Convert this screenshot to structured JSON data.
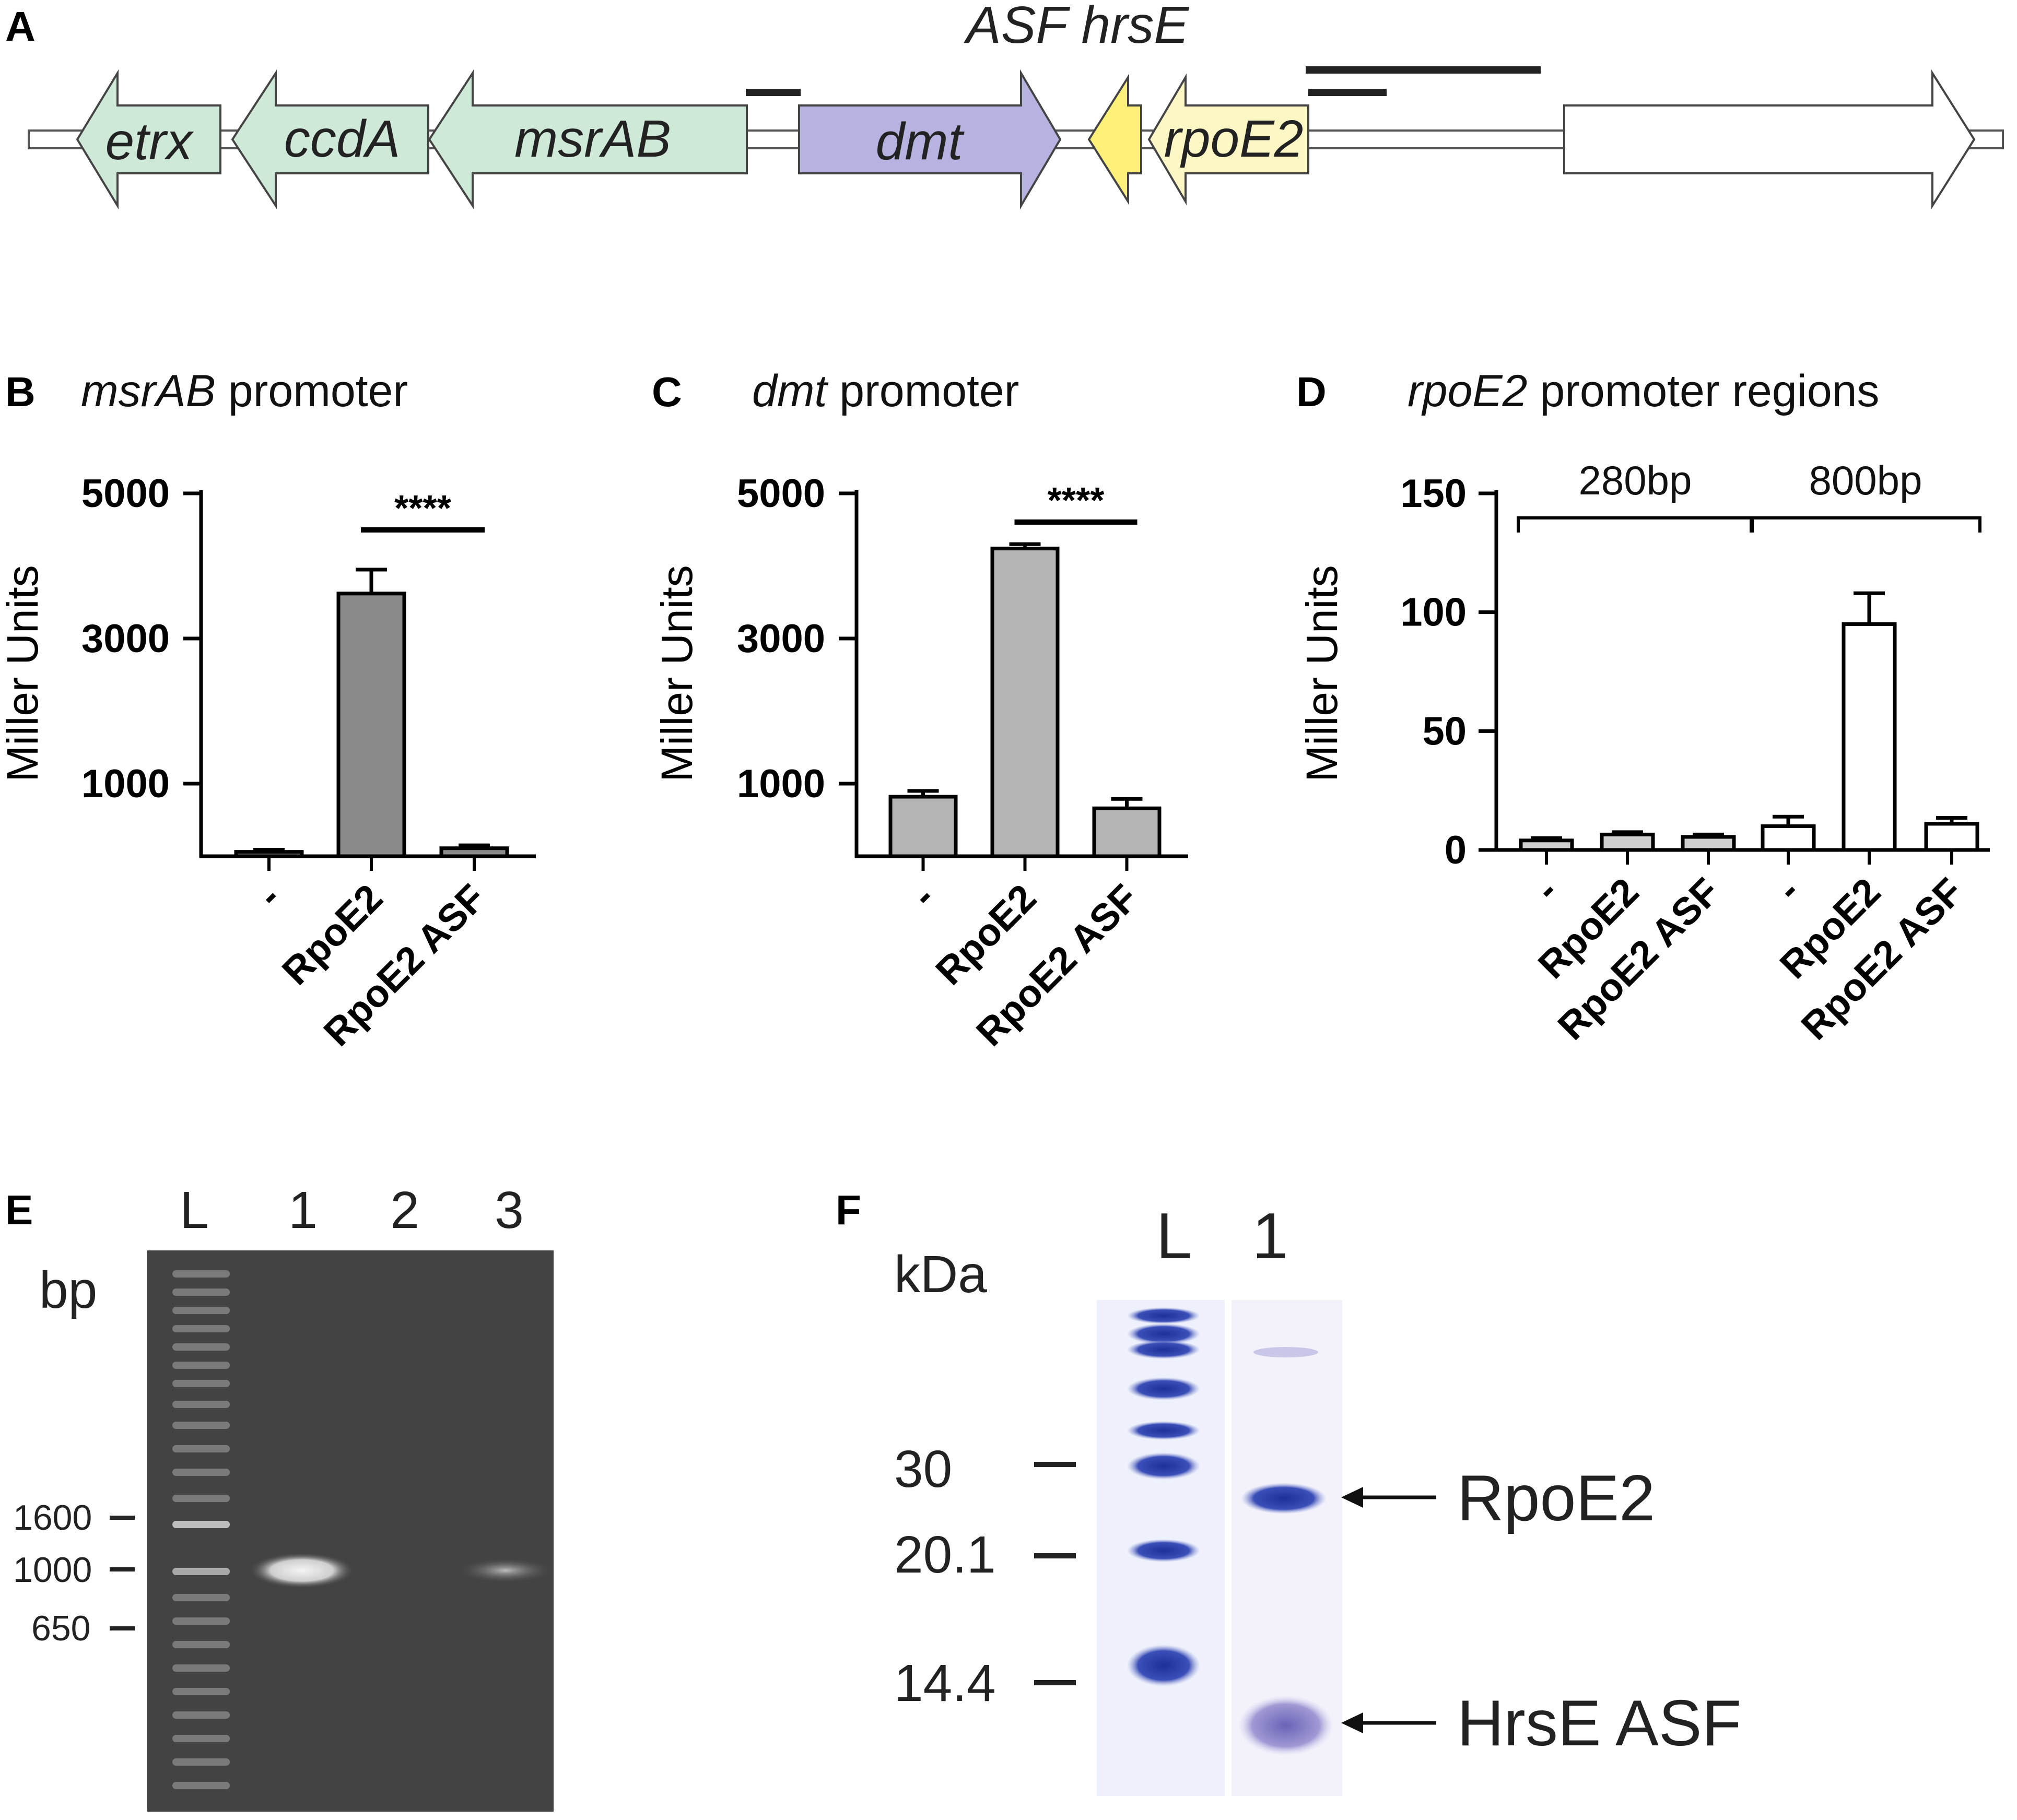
{
  "panels": {
    "a": {
      "label": "A",
      "title": "ASF hrsE",
      "genes": {
        "etrx": "etrx",
        "ccda": "ccdA",
        "msrab": "msrAB",
        "dmt": "dmt",
        "rpoe2": "rpoE2"
      },
      "colors": {
        "green": "#cfe9d8",
        "purple": "#b7b3e0",
        "yellow": "#fff07a",
        "pale_yellow": "#fdf7c6",
        "white": "#ffffff"
      }
    },
    "b": {
      "label": "B",
      "title_italic": "msrAB",
      "title_rest": " promoter"
    },
    "c": {
      "label": "C",
      "title_italic": "dmt",
      "title_rest": " promoter"
    },
    "d": {
      "label": "D",
      "title_italic": "rpoE2",
      "title_rest": " promoter regions"
    },
    "e": {
      "label": "E",
      "lanes": [
        "L",
        "1",
        "2",
        "3"
      ],
      "unit": "bp",
      "markers": [
        "1600",
        "1000",
        "650"
      ]
    },
    "f": {
      "label": "F",
      "lanes": [
        "L",
        "1"
      ],
      "unit": "kDa",
      "markers": [
        "30",
        "20.1",
        "14.4"
      ],
      "bands": [
        "RpoE2",
        "HrsE ASF"
      ]
    }
  },
  "chart_data": [
    {
      "id": "b",
      "type": "bar",
      "ylabel": "Miller Units",
      "ylim": [
        0,
        5000
      ],
      "yticks": [
        "1000",
        "3000",
        "5000"
      ],
      "categories": [
        "-",
        "RpoE2",
        "RpoE2 ASF"
      ],
      "values": [
        60,
        3620,
        110
      ],
      "errors": [
        30,
        330,
        40
      ],
      "bar_color": "#8a8a8a",
      "significance": "****",
      "significance_between": [
        1,
        2
      ]
    },
    {
      "id": "c",
      "type": "bar",
      "ylabel": "Miller Units",
      "ylim": [
        0,
        5000
      ],
      "yticks": [
        "1000",
        "3000",
        "5000"
      ],
      "categories": [
        "-",
        "RpoE2",
        "RpoE2 ASF"
      ],
      "values": [
        820,
        4240,
        660
      ],
      "errors": [
        80,
        60,
        130
      ],
      "bar_color": "#b4b4b4",
      "significance": "****",
      "significance_between": [
        1,
        2
      ]
    },
    {
      "id": "d",
      "type": "bar",
      "ylabel": "Miller Units",
      "ylim": [
        0,
        150
      ],
      "yticks": [
        "0",
        "50",
        "100",
        "150"
      ],
      "categories": [
        "-",
        "RpoE2",
        "RpoE2 ASF",
        "-",
        "RpoE2",
        "RpoE2 ASF"
      ],
      "values": [
        4,
        6.5,
        5.5,
        10,
        95,
        11
      ],
      "errors": [
        1,
        1,
        1,
        4,
        13,
        2.5
      ],
      "bar_colors": [
        "#cfcfcf",
        "#cfcfcf",
        "#cfcfcf",
        "#ffffff",
        "#ffffff",
        "#ffffff"
      ],
      "groups": [
        {
          "label": "280bp",
          "from": 0,
          "to": 2
        },
        {
          "label": "800bp",
          "from": 3,
          "to": 5
        }
      ]
    }
  ]
}
